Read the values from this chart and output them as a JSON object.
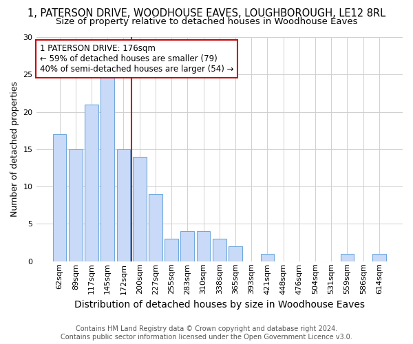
{
  "title": "1, PATERSON DRIVE, WOODHOUSE EAVES, LOUGHBOROUGH, LE12 8RL",
  "subtitle": "Size of property relative to detached houses in Woodhouse Eaves",
  "xlabel": "Distribution of detached houses by size in Woodhouse Eaves",
  "ylabel": "Number of detached properties",
  "bar_labels": [
    "62sqm",
    "89sqm",
    "117sqm",
    "145sqm",
    "172sqm",
    "200sqm",
    "227sqm",
    "255sqm",
    "283sqm",
    "310sqm",
    "338sqm",
    "365sqm",
    "393sqm",
    "421sqm",
    "448sqm",
    "476sqm",
    "504sqm",
    "531sqm",
    "559sqm",
    "586sqm",
    "614sqm"
  ],
  "bar_values": [
    17,
    15,
    21,
    25,
    15,
    14,
    9,
    3,
    4,
    4,
    3,
    2,
    0,
    1,
    0,
    0,
    0,
    0,
    1,
    0,
    1
  ],
  "bar_color": "#c9daf8",
  "bar_edge_color": "#6fa8dc",
  "vline_x_index": 4.5,
  "vline_color": "#cc0000",
  "annotation_text": "1 PATERSON DRIVE: 176sqm\n← 59% of detached houses are smaller (79)\n40% of semi-detached houses are larger (54) →",
  "annotation_box_color": "#ffffff",
  "annotation_box_edge_color": "#cc0000",
  "ylim": [
    0,
    30
  ],
  "yticks": [
    0,
    5,
    10,
    15,
    20,
    25,
    30
  ],
  "footnote": "Contains HM Land Registry data © Crown copyright and database right 2024.\nContains public sector information licensed under the Open Government Licence v3.0.",
  "title_fontsize": 10.5,
  "subtitle_fontsize": 9.5,
  "xlabel_fontsize": 10,
  "ylabel_fontsize": 9,
  "tick_fontsize": 8,
  "annotation_fontsize": 8.5,
  "footnote_fontsize": 7,
  "background_color": "#ffffff",
  "grid_color": "#d0d0d0"
}
